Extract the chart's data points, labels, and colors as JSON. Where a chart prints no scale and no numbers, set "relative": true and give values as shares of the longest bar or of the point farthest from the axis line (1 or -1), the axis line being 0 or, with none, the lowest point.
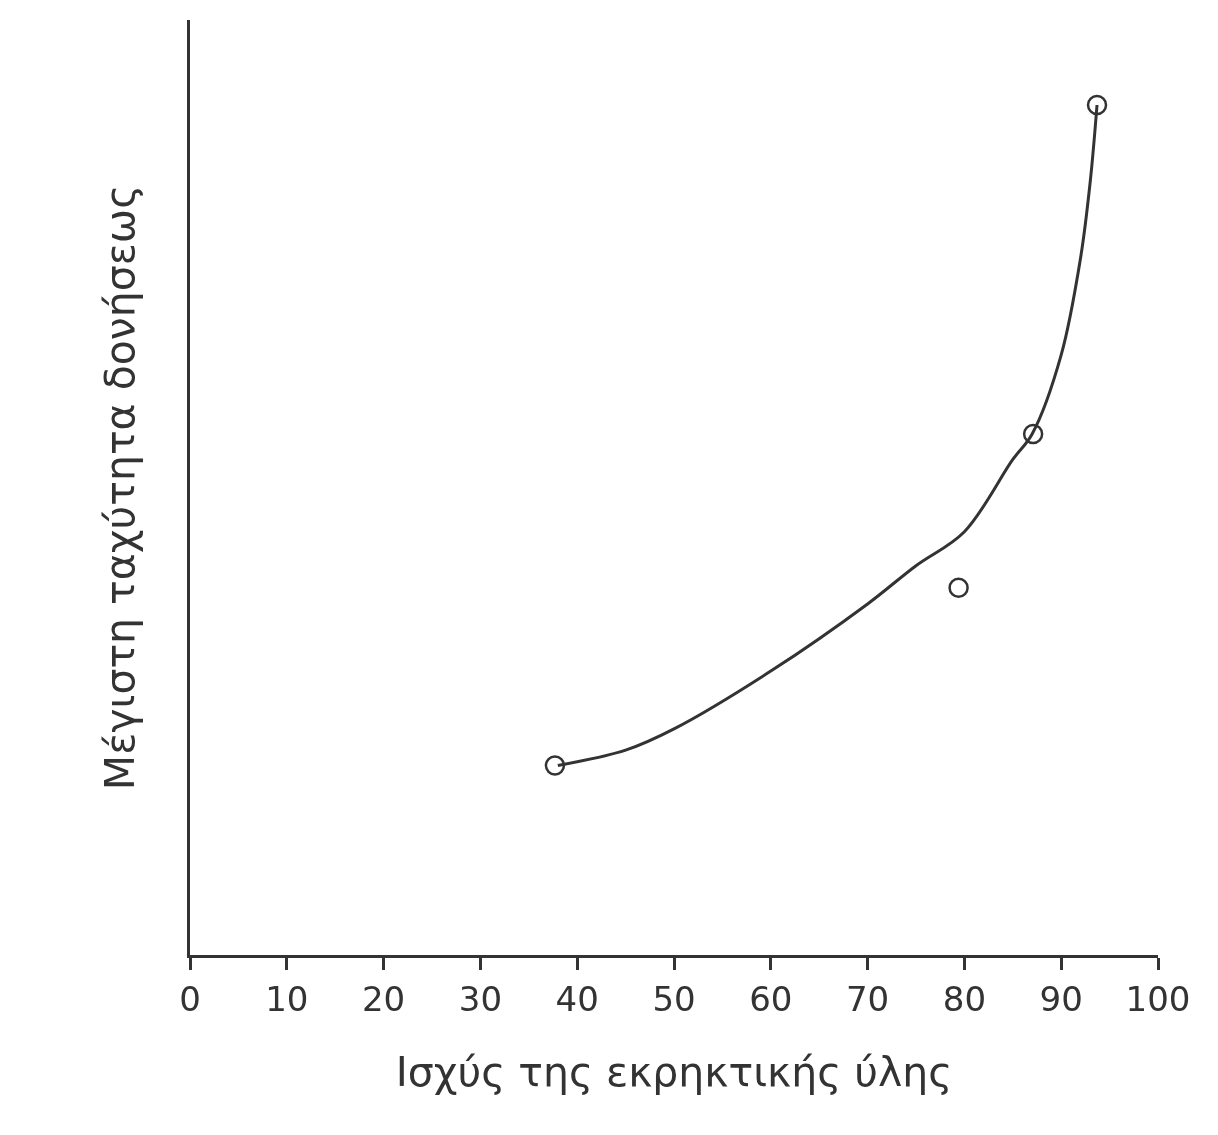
{
  "chart_data": {
    "type": "scatter",
    "relative": true,
    "xlabel": "Ισχύς της εκρηκτικής ύλης",
    "ylabel": "Μέγιστη ταχύτητα δονήσεως",
    "xlim": [
      0,
      100
    ],
    "xticks": [
      0,
      10,
      20,
      30,
      40,
      50,
      60,
      70,
      80,
      90,
      100
    ],
    "legend": false,
    "series": [
      {
        "type": "line",
        "color": "#333333",
        "marker": "none",
        "line_style": "solid",
        "x": [
          38,
          45,
          50,
          60,
          70,
          75,
          80,
          85,
          87,
          90,
          92,
          93,
          93.7
        ],
        "values": [
          0.223,
          0.241,
          0.266,
          0.334,
          0.413,
          0.458,
          0.498,
          0.583,
          0.613,
          0.706,
          0.82,
          0.91,
          1.0
        ]
      },
      {
        "color": "#333333",
        "marker": "circle",
        "x": [
          37.7,
          79.4,
          87.1,
          93.7
        ],
        "values": [
          0.223,
          0.432,
          0.613,
          1.0
        ]
      }
    ]
  }
}
